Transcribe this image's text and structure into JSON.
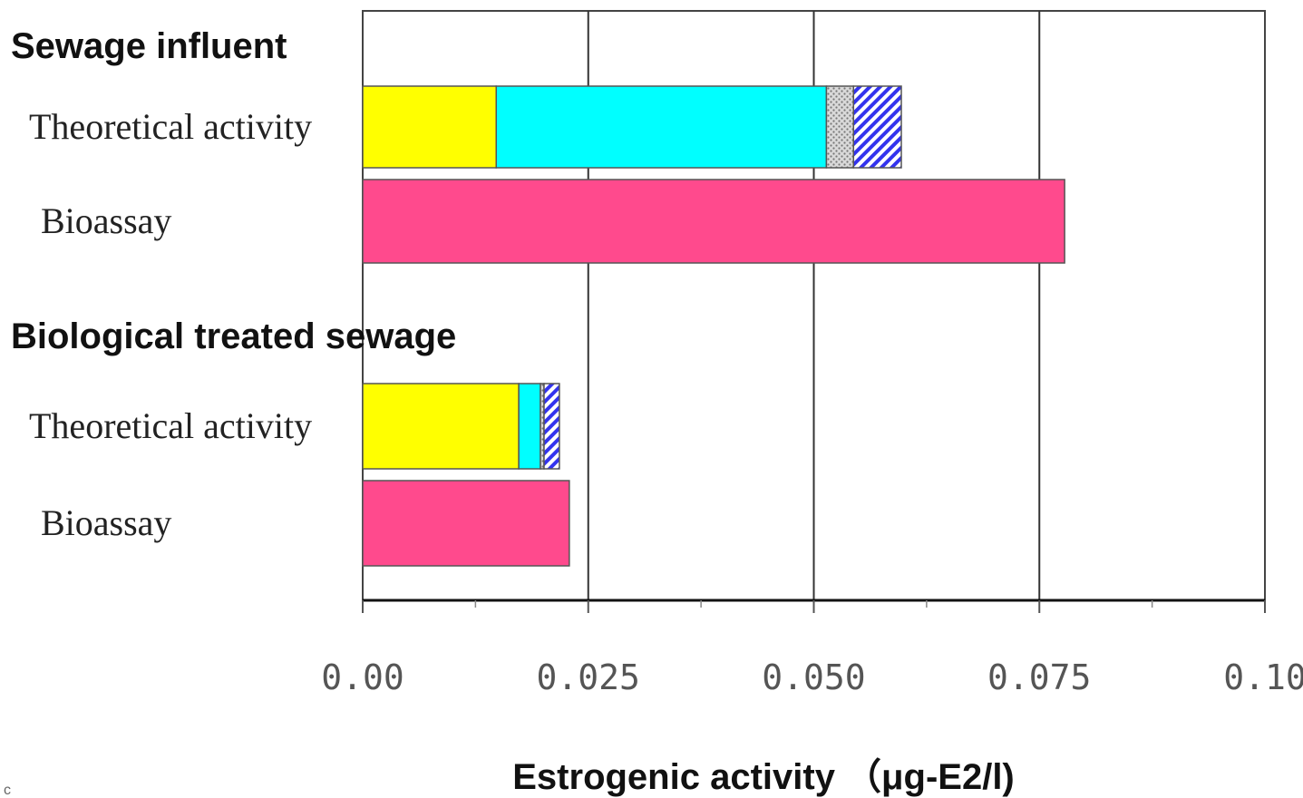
{
  "chart_data": {
    "type": "bar",
    "orientation": "horizontal",
    "stacked": true,
    "xlabel": "Estrogenic activity （μg-E2/l)",
    "xlim": [
      0,
      0.1
    ],
    "x_ticks": [
      "0.00",
      "0.025",
      "0.050",
      "0.075",
      "0.10"
    ],
    "grid": "vertical major gridlines",
    "legend": "none",
    "groups": [
      {
        "label": "Sewage influent",
        "bars": [
          {
            "label": "Theoretical activity",
            "segments": [
              {
                "value": 0.0148,
                "color": "#ffff00",
                "pattern": "solid"
              },
              {
                "value": 0.0366,
                "color": "#00ffff",
                "pattern": "solid"
              },
              {
                "value": 0.003,
                "color": "#c0c0c0",
                "pattern": "dotted"
              },
              {
                "value": 0.0053,
                "color": "#4040ff",
                "pattern": "hatched"
              }
            ]
          },
          {
            "label": "Bioassay",
            "segments": [
              {
                "value": 0.0778,
                "color": "#ff4a8d",
                "pattern": "solid"
              }
            ]
          }
        ]
      },
      {
        "label": "Biological treated sewage",
        "bars": [
          {
            "label": "Theoretical activity",
            "segments": [
              {
                "value": 0.0173,
                "color": "#ffff00",
                "pattern": "solid"
              },
              {
                "value": 0.0024,
                "color": "#00ffff",
                "pattern": "solid"
              },
              {
                "value": 0.0004,
                "color": "#c0c0c0",
                "pattern": "dotted"
              },
              {
                "value": 0.0017,
                "color": "#4040ff",
                "pattern": "hatched"
              }
            ]
          },
          {
            "label": "Bioassay",
            "segments": [
              {
                "value": 0.0229,
                "color": "#ff4a8d",
                "pattern": "solid"
              }
            ]
          }
        ]
      }
    ]
  },
  "stray_mark": "c"
}
